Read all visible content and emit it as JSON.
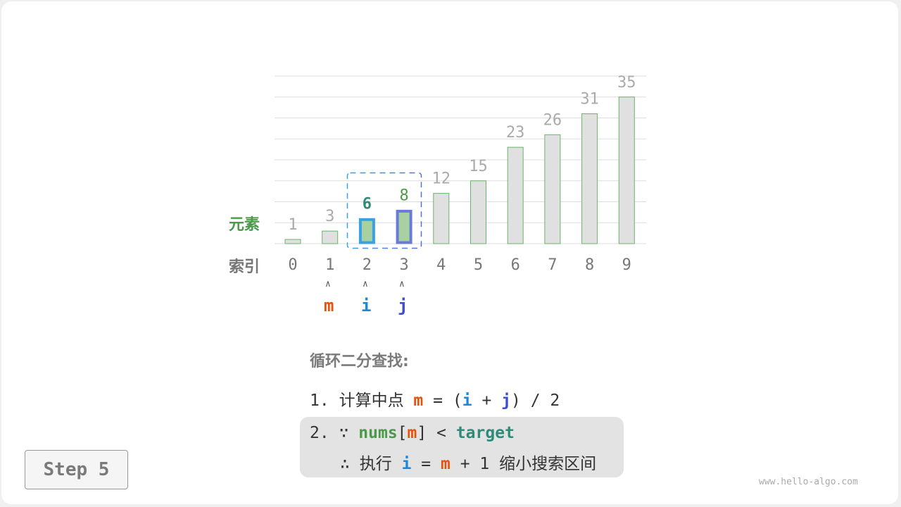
{
  "chart_data": {
    "type": "bar",
    "categories": [
      "0",
      "1",
      "2",
      "3",
      "4",
      "5",
      "6",
      "7",
      "8",
      "9"
    ],
    "values": [
      1,
      3,
      6,
      8,
      12,
      15,
      23,
      26,
      31,
      35
    ],
    "ylim": [
      0,
      40
    ],
    "grid": true,
    "row_labels": {
      "values": "元素",
      "index": "索引"
    },
    "highlight": {
      "i": 2,
      "j": 3,
      "m": 1
    }
  },
  "pointers": {
    "m": "m",
    "i": "i",
    "j": "j",
    "arrow": "∧"
  },
  "colors": {
    "green": "#4a9a4a",
    "teal": "#2e8b7a",
    "blue_i": "#1e88d6",
    "blue_j": "#3b4fd0",
    "orange_m": "#e8520e",
    "bar_fill": "#e0e0e0",
    "bar_hl_fill": "#a8d0a0",
    "bar_stroke": "#6ab36a"
  },
  "panel": {
    "title": "循环二分查找:",
    "step1": {
      "num": "1.",
      "text": "计算中点",
      "m": "m",
      "eq": "=",
      "lp": "(",
      "i": "i",
      "plus": "+",
      "j": "j",
      "rp": ")",
      "div": "/ 2"
    },
    "step2": {
      "num": "2.",
      "because": "∵",
      "nums": "nums",
      "lb": "[",
      "m": "m",
      "rb": "]",
      "lt": "<",
      "target": "target",
      "therefore": "∴",
      "exec": "执行",
      "i": "i",
      "eq": "=",
      "m2": "m",
      "plus1": "+ 1",
      "shrink": "缩小搜索区间"
    }
  },
  "step_label": "Step 5",
  "watermark": "www.hello-algo.com"
}
